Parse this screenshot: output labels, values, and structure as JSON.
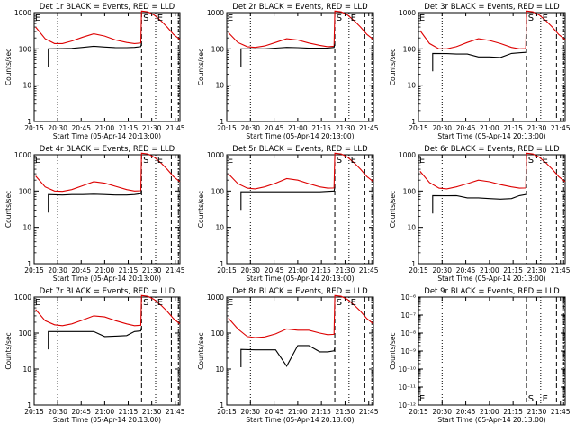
{
  "figure": {
    "xlabel": "Start Time (05-Apr-14 20:13:00)",
    "ylabel": "Counts/sec",
    "x_tick_labels": [
      "20:15",
      "20:30",
      "20:45",
      "21:00",
      "21:15",
      "21:30",
      "21:45"
    ],
    "y_tick_labels": [
      "1",
      "10",
      "100",
      "1000"
    ],
    "y_tick_labels_det9": [
      "10⁻¹²",
      "10⁻¹¹",
      "10⁻¹⁰",
      "10⁻⁹",
      "10⁻⁸",
      "10⁻⁷",
      "10⁻⁶"
    ],
    "markers": {
      "E": "E",
      "S": "S"
    },
    "colors": {
      "events": "#000000",
      "lld": "#dd0000"
    }
  },
  "chart_data": [
    {
      "type": "line",
      "title": "Det 1r BLACK = Events, RED = LLD",
      "x_unit": "minutes after 20:13",
      "x": [
        3,
        9,
        15,
        20,
        26,
        33,
        40,
        47,
        54,
        61,
        66,
        70
      ],
      "xlim": [
        2,
        95
      ],
      "y_scale": "log",
      "ylim": [
        1,
        1000
      ],
      "series": [
        {
          "name": "LLD",
          "color": "#dd0000",
          "values": [
            400,
            190,
            140,
            140,
            165,
            210,
            260,
            225,
            175,
            150,
            140,
            145
          ],
          "tail": [
            1100,
            1050,
            850,
            600,
            400,
            250,
            180
          ]
        },
        {
          "name": "Events",
          "color": "#000000",
          "start": 11,
          "values": [
            null,
            null,
            100,
            102,
            103,
            110,
            118,
            112,
            108,
            108,
            110,
            115
          ]
        }
      ],
      "vlines": {
        "dotted": [
          17,
          79.5
        ],
        "dashed": [
          70.5,
          89.5
        ],
        "dash_dot": [
          94
        ]
      },
      "markers": [
        {
          "label": "E",
          "x": 2.5
        },
        {
          "label": "S",
          "x": 71.5
        },
        {
          "label": "E",
          "x": 80.5
        }
      ]
    },
    {
      "type": "line",
      "title": "Det 2r BLACK = Events, RED = LLD",
      "x_unit": "minutes after 20:13",
      "x": [
        3,
        9,
        15,
        20,
        26,
        33,
        40,
        47,
        54,
        61,
        66,
        70
      ],
      "xlim": [
        2,
        95
      ],
      "y_scale": "log",
      "ylim": [
        1,
        1000
      ],
      "series": [
        {
          "name": "LLD",
          "color": "#dd0000",
          "values": [
            280,
            150,
            115,
            110,
            120,
            150,
            190,
            175,
            145,
            125,
            115,
            118
          ],
          "tail": [
            1100,
            1050,
            850,
            600,
            400,
            250,
            180
          ]
        },
        {
          "name": "Events",
          "color": "#000000",
          "start": 11,
          "values": [
            null,
            null,
            100,
            100,
            100,
            105,
            110,
            108,
            104,
            104,
            105,
            110
          ]
        }
      ],
      "vlines": {
        "dotted": [
          17,
          79.5
        ],
        "dashed": [
          70.5,
          89.5
        ],
        "dash_dot": [
          94
        ]
      },
      "markers": [
        {
          "label": "E",
          "x": 2.5
        },
        {
          "label": "S",
          "x": 71.5
        },
        {
          "label": "E",
          "x": 80.5
        }
      ]
    },
    {
      "type": "line",
      "title": "Det 3r BLACK = Events, RED = LLD",
      "x_unit": "minutes after 20:13",
      "x": [
        3,
        9,
        15,
        20,
        26,
        33,
        40,
        47,
        54,
        61,
        66,
        70
      ],
      "xlim": [
        2,
        95
      ],
      "y_scale": "log",
      "ylim": [
        1,
        1000
      ],
      "series": [
        {
          "name": "LLD",
          "color": "#dd0000",
          "values": [
            320,
            140,
            100,
            100,
            115,
            150,
            190,
            170,
            140,
            110,
            100,
            102
          ],
          "tail": [
            1100,
            1050,
            850,
            600,
            400,
            250,
            180
          ]
        },
        {
          "name": "Events",
          "color": "#000000",
          "start": 11,
          "values": [
            null,
            null,
            75,
            74,
            72,
            72,
            60,
            60,
            58,
            75,
            78,
            80
          ]
        }
      ],
      "vlines": {
        "dotted": [
          17,
          79.5
        ],
        "dashed": [
          70.5,
          89.5
        ],
        "dash_dot": [
          94
        ]
      },
      "markers": [
        {
          "label": "E",
          "x": 2.5
        },
        {
          "label": "S",
          "x": 71.5
        },
        {
          "label": "E",
          "x": 80.5
        }
      ]
    },
    {
      "type": "line",
      "title": "Det 4r BLACK = Events, RED = LLD",
      "x_unit": "minutes after 20:13",
      "x": [
        3,
        9,
        15,
        20,
        26,
        33,
        40,
        47,
        54,
        61,
        66,
        70
      ],
      "xlim": [
        2,
        95
      ],
      "y_scale": "log",
      "ylim": [
        1,
        1000
      ],
      "series": [
        {
          "name": "LLD",
          "color": "#dd0000",
          "values": [
            260,
            130,
            100,
            98,
            110,
            140,
            180,
            165,
            135,
            110,
            100,
            102
          ],
          "tail": [
            1100,
            1050,
            850,
            600,
            400,
            250,
            180
          ]
        },
        {
          "name": "Events",
          "color": "#000000",
          "start": 11,
          "values": [
            null,
            null,
            80,
            78,
            80,
            80,
            82,
            80,
            78,
            78,
            80,
            85
          ]
        }
      ],
      "vlines": {
        "dotted": [
          17,
          79.5
        ],
        "dashed": [
          70.5,
          89.5
        ],
        "dash_dot": [
          94
        ]
      },
      "markers": [
        {
          "label": "E",
          "x": 2.5
        },
        {
          "label": "S",
          "x": 71.5
        },
        {
          "label": "E",
          "x": 80.5
        }
      ]
    },
    {
      "type": "line",
      "title": "Det 5r BLACK = Events, RED = LLD",
      "x_unit": "minutes after 20:13",
      "x": [
        3,
        9,
        15,
        20,
        26,
        33,
        40,
        47,
        54,
        61,
        66,
        70
      ],
      "xlim": [
        2,
        95
      ],
      "y_scale": "log",
      "ylim": [
        1,
        1000
      ],
      "series": [
        {
          "name": "LLD",
          "color": "#dd0000",
          "values": [
            300,
            160,
            120,
            115,
            130,
            165,
            220,
            200,
            160,
            130,
            120,
            122
          ],
          "tail": [
            1100,
            1050,
            850,
            600,
            400,
            250,
            180
          ]
        },
        {
          "name": "Events",
          "color": "#000000",
          "start": 11,
          "values": [
            null,
            null,
            95,
            95,
            95,
            95,
            95,
            95,
            95,
            95,
            98,
            100
          ]
        }
      ],
      "vlines": {
        "dotted": [
          17,
          79.5
        ],
        "dashed": [
          70.5,
          89.5
        ],
        "dash_dot": [
          94
        ]
      },
      "markers": [
        {
          "label": "E",
          "x": 2.5
        },
        {
          "label": "S",
          "x": 71.5
        },
        {
          "label": "E",
          "x": 80.5
        }
      ]
    },
    {
      "type": "line",
      "title": "Det 6r BLACK = Events, RED = LLD",
      "x_unit": "minutes after 20:13",
      "x": [
        3,
        9,
        15,
        20,
        26,
        33,
        40,
        47,
        54,
        61,
        66,
        70
      ],
      "xlim": [
        2,
        95
      ],
      "y_scale": "log",
      "ylim": [
        1,
        1000
      ],
      "series": [
        {
          "name": "LLD",
          "color": "#dd0000",
          "values": [
            350,
            170,
            120,
            115,
            130,
            160,
            200,
            180,
            150,
            130,
            120,
            122
          ],
          "tail": [
            1100,
            1050,
            850,
            600,
            400,
            250,
            180
          ]
        },
        {
          "name": "Events",
          "color": "#000000",
          "start": 11,
          "values": [
            null,
            null,
            75,
            74,
            75,
            65,
            65,
            62,
            60,
            62,
            75,
            80
          ]
        }
      ],
      "vlines": {
        "dotted": [
          17,
          79.5
        ],
        "dashed": [
          70.5,
          89.5
        ],
        "dash_dot": [
          94
        ]
      },
      "markers": [
        {
          "label": "E",
          "x": 2.5
        },
        {
          "label": "S",
          "x": 71.5
        },
        {
          "label": "E",
          "x": 80.5
        }
      ]
    },
    {
      "type": "line",
      "title": "Det 7r BLACK = Events, RED = LLD",
      "x_unit": "minutes after 20:13",
      "x": [
        3,
        9,
        15,
        20,
        26,
        33,
        40,
        47,
        54,
        61,
        66,
        70
      ],
      "xlim": [
        2,
        95
      ],
      "y_scale": "log",
      "ylim": [
        1,
        1000
      ],
      "series": [
        {
          "name": "LLD",
          "color": "#dd0000",
          "values": [
            450,
            220,
            170,
            160,
            180,
            230,
            300,
            280,
            220,
            180,
            160,
            165
          ],
          "tail": [
            1100,
            1050,
            850,
            600,
            400,
            250,
            180
          ]
        },
        {
          "name": "Events",
          "color": "#000000",
          "start": 11,
          "values": [
            null,
            null,
            110,
            110,
            110,
            110,
            110,
            80,
            82,
            85,
            110,
            115
          ]
        }
      ],
      "vlines": {
        "dotted": [
          17,
          79.5
        ],
        "dashed": [
          70.5,
          89.5
        ],
        "dash_dot": [
          94
        ]
      },
      "markers": [
        {
          "label": "E",
          "x": 2.5
        },
        {
          "label": "S",
          "x": 71.5
        },
        {
          "label": "E",
          "x": 80.5
        }
      ]
    },
    {
      "type": "line",
      "title": "Det 8r BLACK = Events, RED = LLD",
      "x_unit": "minutes after 20:13",
      "x": [
        3,
        9,
        15,
        20,
        26,
        33,
        40,
        47,
        54,
        61,
        66,
        70
      ],
      "xlim": [
        2,
        95
      ],
      "y_scale": "log",
      "ylim": [
        1,
        1000
      ],
      "series": [
        {
          "name": "LLD",
          "color": "#dd0000",
          "values": [
            260,
            130,
            80,
            75,
            78,
            95,
            130,
            120,
            120,
            100,
            90,
            92
          ],
          "tail": [
            1100,
            1050,
            850,
            600,
            400,
            250,
            180
          ]
        },
        {
          "name": "Events",
          "color": "#000000",
          "start": 11,
          "values": [
            null,
            null,
            35,
            34,
            34,
            34,
            12,
            45,
            45,
            30,
            30,
            32
          ]
        }
      ],
      "vlines": {
        "dotted": [
          17,
          79.5
        ],
        "dashed": [
          70.5,
          89.5
        ],
        "dash_dot": [
          94
        ]
      },
      "markers": [
        {
          "label": "E",
          "x": 2.5
        },
        {
          "label": "S",
          "x": 71.5
        },
        {
          "label": "E",
          "x": 80.5
        }
      ]
    },
    {
      "type": "line",
      "title": "Det 9r BLACK = Events, RED = LLD",
      "x_unit": "minutes after 20:13",
      "x": [],
      "xlim": [
        2,
        95
      ],
      "y_scale": "log",
      "ylim": [
        1e-12,
        1e-06
      ],
      "series": [],
      "vlines": {
        "dotted": [
          17,
          79.5
        ],
        "dashed": [
          70.5,
          89.5
        ],
        "dash_dot": [
          94
        ]
      },
      "markers": [
        {
          "label": "E",
          "x": 2.5
        },
        {
          "label": "S",
          "x": 71.5
        },
        {
          "label": "E",
          "x": 80.5
        }
      ]
    }
  ]
}
